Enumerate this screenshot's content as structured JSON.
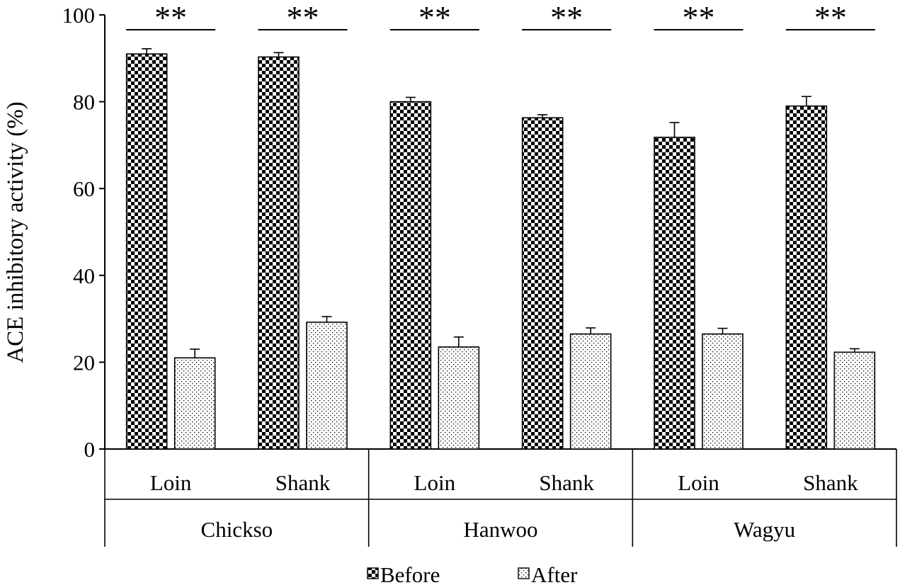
{
  "chart_data": {
    "type": "bar",
    "ylabel": "ACE inhibitory activity (%)",
    "ylim": [
      0,
      100
    ],
    "yticks": [
      0,
      20,
      40,
      60,
      80,
      100
    ],
    "grid": false,
    "legend_position": "bottom",
    "groups": [
      {
        "name": "Chickso",
        "categories": [
          "Loin",
          "Shank"
        ]
      },
      {
        "name": "Hanwoo",
        "categories": [
          "Loin",
          "Shank"
        ]
      },
      {
        "name": "Wagyu",
        "categories": [
          "Loin",
          "Shank"
        ]
      }
    ],
    "categories": [
      "Loin",
      "Shank",
      "Loin",
      "Shank",
      "Loin",
      "Shank"
    ],
    "series": [
      {
        "name": "Before",
        "pattern": "checker",
        "values": [
          91.0,
          90.3,
          80.0,
          76.3,
          71.8,
          79.0
        ],
        "errors": [
          1.2,
          1.0,
          1.0,
          0.7,
          3.4,
          2.2
        ]
      },
      {
        "name": "After",
        "pattern": "dots",
        "values": [
          21.0,
          29.2,
          23.5,
          26.5,
          26.5,
          22.3
        ],
        "errors": [
          2.0,
          1.3,
          2.3,
          1.4,
          1.3,
          0.8
        ]
      }
    ],
    "annotations": [
      "**",
      "**",
      "**",
      "**",
      "**",
      "**"
    ],
    "colors": {
      "ink": "#000000",
      "background": "#ffffff"
    }
  }
}
